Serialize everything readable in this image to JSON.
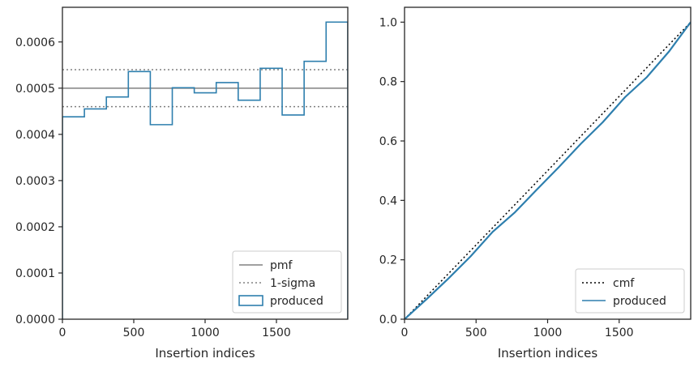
{
  "chart_data": [
    {
      "type": "histogram-step",
      "xlabel": "Insertion indices",
      "ylabel": "",
      "xlim": [
        0,
        2000
      ],
      "ylim": [
        0,
        0.000675
      ],
      "xticks": [
        0,
        500,
        1000,
        1500
      ],
      "xtick_labels": [
        "0",
        "500",
        "1000",
        "1500"
      ],
      "yticks": [
        0,
        0.0001,
        0.0002,
        0.0003,
        0.0004,
        0.0005,
        0.0006
      ],
      "ytick_labels": [
        "0.0000",
        "0.0001",
        "0.0002",
        "0.0003",
        "0.0004",
        "0.0005",
        "0.0006"
      ],
      "grid": false,
      "legend_position": "lower-right",
      "reference_lines": [
        {
          "name": "pmf",
          "style": "solid",
          "color": "#808080",
          "y": 0.0005
        },
        {
          "name": "1-sigma",
          "style": "dotted",
          "color": "#808080",
          "y": [
            0.00046,
            0.00054
          ]
        }
      ],
      "series": [
        {
          "name": "produced",
          "color": "#2e7fae",
          "bin_edges": [
            0,
            154,
            308,
            462,
            616,
            770,
            924,
            1078,
            1232,
            1386,
            1540,
            1694,
            1848,
            2000
          ],
          "values": [
            0.000438,
            0.000455,
            0.000481,
            0.000536,
            0.000421,
            0.000501,
            0.00049,
            0.000512,
            0.000474,
            0.000543,
            0.000442,
            0.000558,
            0.000643
          ]
        }
      ]
    },
    {
      "type": "line",
      "xlabel": "Insertion indices",
      "ylabel": "",
      "xlim": [
        0,
        2000
      ],
      "ylim": [
        0,
        1.05
      ],
      "xticks": [
        0,
        500,
        1000,
        1500
      ],
      "xtick_labels": [
        "0",
        "500",
        "1000",
        "1500"
      ],
      "yticks": [
        0,
        0.2,
        0.4,
        0.6,
        0.8,
        1.0
      ],
      "ytick_labels": [
        "0.0",
        "0.2",
        "0.4",
        "0.6",
        "0.8",
        "1.0"
      ],
      "grid": false,
      "legend_position": "lower-right",
      "series": [
        {
          "name": "cmf",
          "style": "dotted",
          "color": "#000000",
          "x": [
            0,
            2000
          ],
          "y": [
            0,
            1.0
          ]
        },
        {
          "name": "produced",
          "style": "solid",
          "color": "#2e7fae",
          "x": [
            0,
            154,
            308,
            462,
            616,
            770,
            924,
            1078,
            1232,
            1386,
            1540,
            1694,
            1848,
            2000
          ],
          "y": [
            0,
            0.0675,
            0.1375,
            0.2116,
            0.2942,
            0.359,
            0.4361,
            0.5116,
            0.5904,
            0.6634,
            0.747,
            0.8151,
            0.901,
            1.0
          ]
        }
      ]
    }
  ]
}
